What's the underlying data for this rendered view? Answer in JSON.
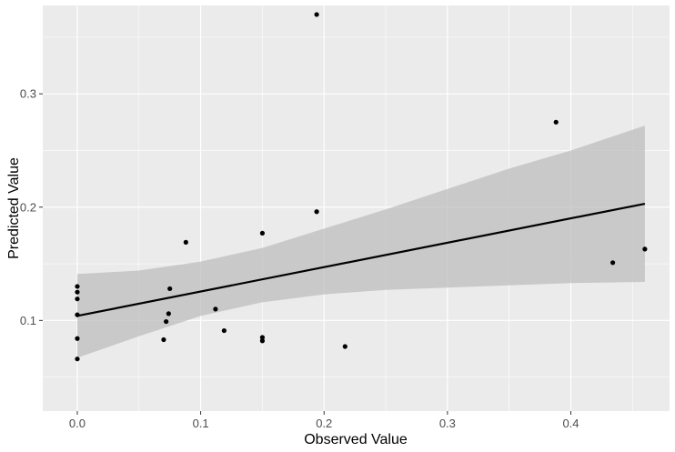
{
  "chart_data": {
    "type": "scatter",
    "xlabel": "Observed Value",
    "ylabel": "Predicted Value",
    "xlim": [
      -0.028,
      0.48
    ],
    "ylim": [
      0.02,
      0.378
    ],
    "x_ticks": [
      0.0,
      0.1,
      0.2,
      0.3,
      0.4
    ],
    "x_tick_labels": [
      "0.0",
      "0.1",
      "0.2",
      "0.3",
      "0.4"
    ],
    "y_ticks": [
      0.1,
      0.2,
      0.3
    ],
    "y_tick_labels": [
      "0.1",
      "0.2",
      "0.3"
    ],
    "grid": true,
    "points": [
      {
        "x": 0.0,
        "y": 0.13
      },
      {
        "x": 0.0,
        "y": 0.125
      },
      {
        "x": 0.0,
        "y": 0.119
      },
      {
        "x": 0.0,
        "y": 0.105
      },
      {
        "x": 0.0,
        "y": 0.084
      },
      {
        "x": 0.0,
        "y": 0.066
      },
      {
        "x": 0.07,
        "y": 0.083
      },
      {
        "x": 0.072,
        "y": 0.099
      },
      {
        "x": 0.074,
        "y": 0.106
      },
      {
        "x": 0.075,
        "y": 0.128
      },
      {
        "x": 0.088,
        "y": 0.169
      },
      {
        "x": 0.112,
        "y": 0.11
      },
      {
        "x": 0.119,
        "y": 0.091
      },
      {
        "x": 0.15,
        "y": 0.177
      },
      {
        "x": 0.15,
        "y": 0.085
      },
      {
        "x": 0.15,
        "y": 0.082
      },
      {
        "x": 0.194,
        "y": 0.37
      },
      {
        "x": 0.194,
        "y": 0.196
      },
      {
        "x": 0.217,
        "y": 0.077
      },
      {
        "x": 0.388,
        "y": 0.275
      },
      {
        "x": 0.434,
        "y": 0.151
      },
      {
        "x": 0.46,
        "y": 0.163
      }
    ],
    "fit_line": {
      "x": [
        0.0,
        0.46
      ],
      "y": [
        0.104,
        0.203
      ]
    },
    "confidence_band": {
      "x": [
        0.0,
        0.05,
        0.1,
        0.15,
        0.2,
        0.25,
        0.3,
        0.35,
        0.4,
        0.46
      ],
      "upper": [
        0.141,
        0.144,
        0.152,
        0.164,
        0.181,
        0.198,
        0.216,
        0.234,
        0.25,
        0.272
      ],
      "lower": [
        0.067,
        0.086,
        0.104,
        0.116,
        0.123,
        0.127,
        0.129,
        0.131,
        0.133,
        0.134
      ]
    },
    "colors": {
      "panel": "#ebebeb",
      "grid": "#ffffff",
      "points": "#000000",
      "line": "#000000",
      "band": "#bebebe"
    }
  }
}
